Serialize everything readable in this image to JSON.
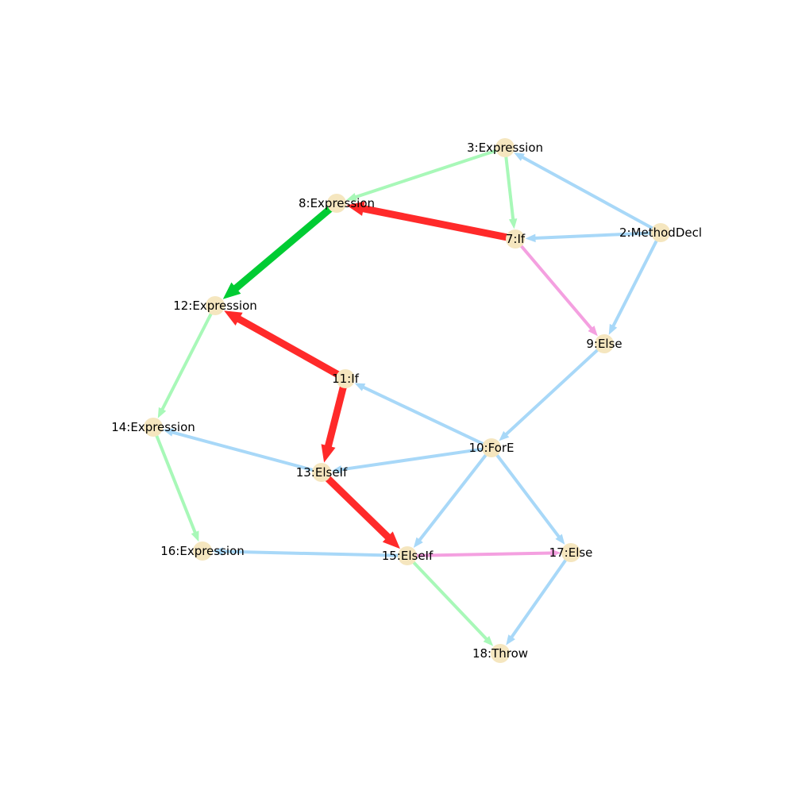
{
  "graph": {
    "colors": {
      "node_fill": "#f5e6bf",
      "ast_edge": "#a8d8f8",
      "data_edge": "#a8f8b8",
      "control_edge": "#f4a0e0",
      "red_path": "#ff2a2a",
      "green_path": "#00cc33"
    },
    "nodes": [
      {
        "id": "n2",
        "label": "2:MethodDecl"
      },
      {
        "id": "n3",
        "label": "3:Expression"
      },
      {
        "id": "n7",
        "label": "7:If"
      },
      {
        "id": "n8",
        "label": "8:Expression"
      },
      {
        "id": "n9",
        "label": "9:Else"
      },
      {
        "id": "n10",
        "label": "10:ForE"
      },
      {
        "id": "n11",
        "label": "11:If"
      },
      {
        "id": "n12",
        "label": "12:Expression"
      },
      {
        "id": "n13",
        "label": "13:ElseIf"
      },
      {
        "id": "n14",
        "label": "14:Expression"
      },
      {
        "id": "n15",
        "label": "15:ElseIf"
      },
      {
        "id": "n16",
        "label": "16:Expression"
      },
      {
        "id": "n17",
        "label": "17:Else"
      },
      {
        "id": "n18",
        "label": "18:Throw"
      }
    ],
    "edges": [
      {
        "from": "n2",
        "to": "n3",
        "kind": "ast_edge",
        "weight": "thin"
      },
      {
        "from": "n2",
        "to": "n7",
        "kind": "ast_edge",
        "weight": "thin"
      },
      {
        "from": "n2",
        "to": "n9",
        "kind": "ast_edge",
        "weight": "thin"
      },
      {
        "from": "n3",
        "to": "n8",
        "kind": "data_edge",
        "weight": "thin"
      },
      {
        "from": "n3",
        "to": "n7",
        "kind": "data_edge",
        "weight": "thin"
      },
      {
        "from": "n7",
        "to": "n8",
        "kind": "red_path",
        "weight": "thick"
      },
      {
        "from": "n7",
        "to": "n9",
        "kind": "control_edge",
        "weight": "thin"
      },
      {
        "from": "n8",
        "to": "n12",
        "kind": "green_path",
        "weight": "thick"
      },
      {
        "from": "n9",
        "to": "n10",
        "kind": "ast_edge",
        "weight": "thin"
      },
      {
        "from": "n10",
        "to": "n11",
        "kind": "ast_edge",
        "weight": "thin"
      },
      {
        "from": "n10",
        "to": "n13",
        "kind": "ast_edge",
        "weight": "thin"
      },
      {
        "from": "n10",
        "to": "n15",
        "kind": "ast_edge",
        "weight": "thin"
      },
      {
        "from": "n10",
        "to": "n17",
        "kind": "ast_edge",
        "weight": "thin"
      },
      {
        "from": "n11",
        "to": "n12",
        "kind": "red_path",
        "weight": "thick"
      },
      {
        "from": "n11",
        "to": "n13",
        "kind": "red_path",
        "weight": "thick"
      },
      {
        "from": "n12",
        "to": "n14",
        "kind": "data_edge",
        "weight": "thin"
      },
      {
        "from": "n13",
        "to": "n14",
        "kind": "ast_edge",
        "weight": "thin"
      },
      {
        "from": "n13",
        "to": "n15",
        "kind": "red_path",
        "weight": "thick"
      },
      {
        "from": "n14",
        "to": "n16",
        "kind": "data_edge",
        "weight": "thin"
      },
      {
        "from": "n15",
        "to": "n16",
        "kind": "ast_edge",
        "weight": "thin"
      },
      {
        "from": "n15",
        "to": "n17",
        "kind": "control_edge",
        "weight": "thin"
      },
      {
        "from": "n15",
        "to": "n18",
        "kind": "data_edge",
        "weight": "thin"
      },
      {
        "from": "n17",
        "to": "n18",
        "kind": "ast_edge",
        "weight": "thin"
      }
    ]
  }
}
